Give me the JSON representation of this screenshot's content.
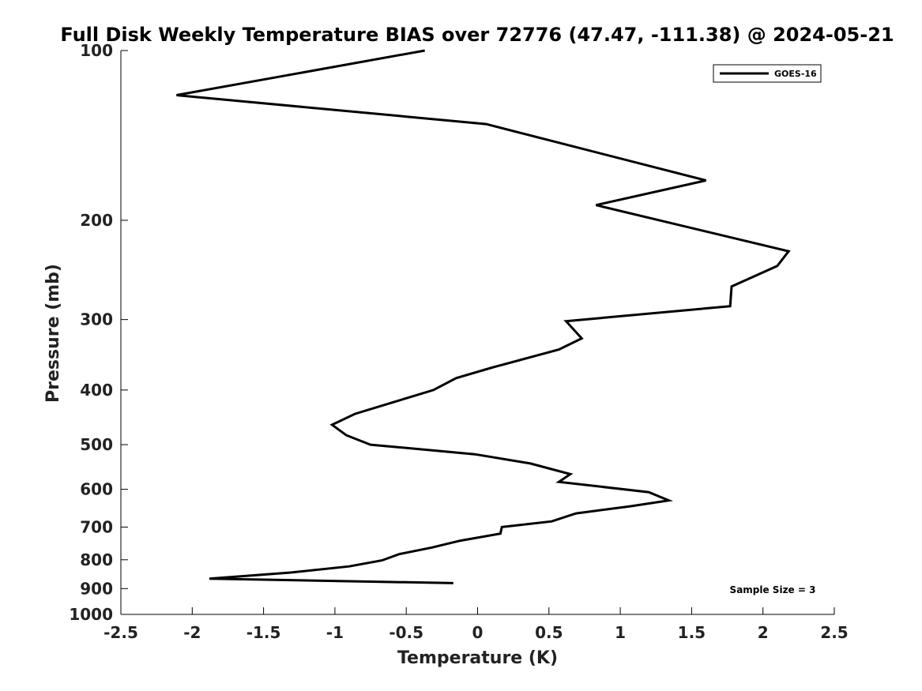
{
  "chart_data": {
    "type": "line",
    "title": "Full Disk Weekly Temperature BIAS over 72776 (47.47, -111.38) @ 2024-05-21",
    "xlabel": "Temperature (K)",
    "ylabel": "Pressure (mb)",
    "xlim": [
      -2.5,
      2.5
    ],
    "ylim": [
      1000,
      100
    ],
    "yscale": "log",
    "xticks": [
      -2.5,
      -2,
      -1.5,
      -1,
      -0.5,
      0,
      0.5,
      1,
      1.5,
      2,
      2.5
    ],
    "xtick_labels": [
      "-2.5",
      "-2",
      "-1.5",
      "-1",
      "-0.5",
      "0",
      "0.5",
      "1",
      "1.5",
      "2",
      "2.5"
    ],
    "yticks": [
      100,
      200,
      300,
      400,
      500,
      600,
      700,
      800,
      900,
      1000
    ],
    "ytick_labels": [
      "100",
      "200",
      "300",
      "400",
      "500",
      "600",
      "700",
      "800",
      "900",
      "1000"
    ],
    "grid": false,
    "legend_position": "top-right",
    "annotation": "Sample Size = 3",
    "line_color": "#000000",
    "series": [
      {
        "name": "GOES-16",
        "points": [
          [
            -0.37,
            100
          ],
          [
            -2.11,
            120
          ],
          [
            0.06,
            135
          ],
          [
            1.6,
            170
          ],
          [
            0.83,
            188
          ],
          [
            2.18,
            227
          ],
          [
            2.1,
            241
          ],
          [
            1.78,
            262
          ],
          [
            1.77,
            284
          ],
          [
            0.62,
            302
          ],
          [
            0.73,
            324
          ],
          [
            0.57,
            339
          ],
          [
            0.1,
            365
          ],
          [
            -0.15,
            381
          ],
          [
            -0.31,
            400
          ],
          [
            -0.86,
            441
          ],
          [
            -1.02,
            461
          ],
          [
            -0.92,
            481
          ],
          [
            -0.75,
            500
          ],
          [
            -0.02,
            520
          ],
          [
            0.37,
            540
          ],
          [
            0.65,
            564
          ],
          [
            0.57,
            582
          ],
          [
            1.2,
            607
          ],
          [
            1.34,
            628
          ],
          [
            1.07,
            643
          ],
          [
            0.69,
            662
          ],
          [
            0.52,
            684
          ],
          [
            0.17,
            700
          ],
          [
            0.16,
            719
          ],
          [
            -0.12,
            740
          ],
          [
            -0.32,
            761
          ],
          [
            -0.55,
            782
          ],
          [
            -0.67,
            802
          ],
          [
            -0.9,
            822
          ],
          [
            -1.31,
            843
          ],
          [
            -1.88,
            864
          ],
          [
            -0.17,
            880
          ]
        ]
      }
    ]
  }
}
